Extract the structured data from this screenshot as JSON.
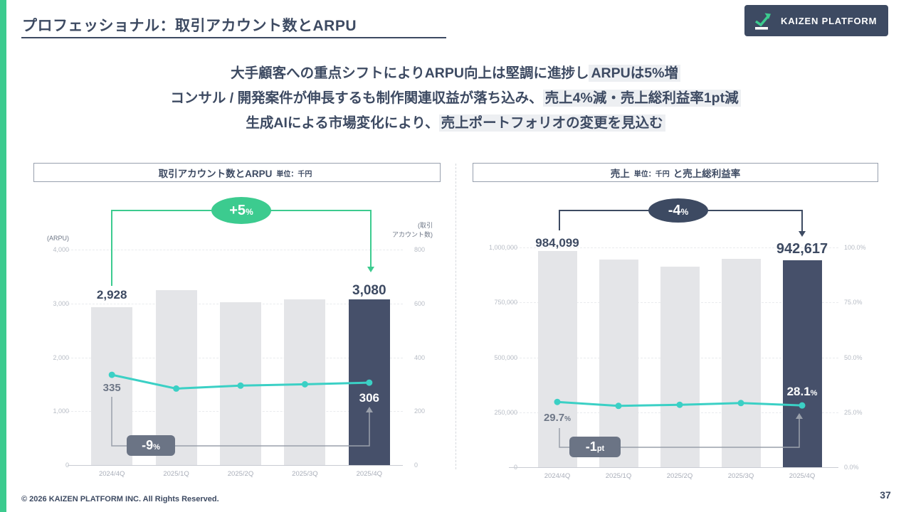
{
  "page": {
    "title": "プロフェッショナル：取引アカウント数とARPU",
    "logo_text": "KAIZEN PLATFORM",
    "footer": "© 2026 KAIZEN PLATFORM INC. All Rights Reserved.",
    "page_number": "37"
  },
  "summary": {
    "lines": [
      {
        "pre": "大手顧客への重点シフトによりARPU向上は堅調に進捗し",
        "highlight": "ARPUは5%増"
      },
      {
        "pre": "コンサル / 開発案件が伸長するも制作関連収益が落ち込み、",
        "highlight": "売上4%減・売上総利益率1pt減"
      },
      {
        "pre": "生成AIによる市場変化により、",
        "highlight": "売上ポートフォリオの変更を見込む"
      }
    ]
  },
  "colors": {
    "navy": "#3d4a62",
    "navy_bar": "#46506a",
    "green": "#3ccb8f",
    "teal": "#3bd0c5",
    "gray_bar": "#e4e5e8",
    "badge_gray": "#6b7485",
    "axis_text": "#b7bcc5",
    "x_label": "#a9aeb9",
    "gray_label": "#6e7787",
    "gridline": "#e9ebee",
    "baseline": "#c9ccd3",
    "highlight": "#edeff2",
    "box_border": "#98a0ae",
    "gray_line": "#9aa0ab",
    "white": "#ffffff"
  },
  "chart_data": [
    {
      "type": "bar+line",
      "title_main": "取引アカウント数とARPU",
      "unit": "単位：千円",
      "title_suffix": "",
      "categories": [
        "2024/4Q",
        "2025/1Q",
        "2025/2Q",
        "2025/3Q",
        "2025/4Q"
      ],
      "bar_series": {
        "name": "ARPU（千円）",
        "axis": "left",
        "values": [
          2928,
          3250,
          3020,
          3070,
          3080
        ]
      },
      "line_series": {
        "name": "取引アカウント数",
        "axis": "right",
        "values": [
          335,
          284,
          295,
          300,
          306
        ]
      },
      "left_axis": {
        "title": "(ARPU)",
        "max": 4000,
        "ticks": [
          "4,000",
          "3,000",
          "2,000",
          "1,000",
          "0"
        ]
      },
      "right_axis": {
        "title_line1": "(取引",
        "title_line2": "アカウント数)",
        "max": 800,
        "ticks": [
          "800",
          "600",
          "400",
          "200",
          "0"
        ]
      },
      "labels": {
        "bar_first": {
          "text": "2,928",
          "suffix": ""
        },
        "bar_last": {
          "text": "3,080",
          "suffix": ""
        },
        "line_first": {
          "text": "335",
          "suffix": ""
        },
        "line_last": {
          "text": "306",
          "suffix": ""
        }
      },
      "badges": {
        "top": {
          "text": "+5",
          "suffix": "%"
        },
        "bottom": {
          "text": "-9",
          "suffix": "%"
        }
      }
    },
    {
      "type": "bar+line",
      "title_main": "売上",
      "unit": "単位：千円",
      "title_suffix": "と売上総利益率",
      "categories": [
        "2024/4Q",
        "2025/1Q",
        "2025/2Q",
        "2025/3Q",
        "2025/4Q"
      ],
      "bar_series": {
        "name": "売上（千円）",
        "axis": "left",
        "values": [
          984099,
          945000,
          912000,
          948000,
          942617
        ]
      },
      "line_series": {
        "name": "売上総利益率",
        "axis": "right",
        "values": [
          29.7,
          27.9,
          28.4,
          29.2,
          28.1
        ]
      },
      "left_axis": {
        "max": 1000000,
        "ticks": [
          "1,000,000",
          "750,000",
          "500,000",
          "250,000",
          "0"
        ]
      },
      "right_axis": {
        "max": 100,
        "ticks": [
          "100.0%",
          "75.0%",
          "50.0%",
          "25.0%",
          "0.0%"
        ]
      },
      "labels": {
        "bar_first": {
          "text": "984,099",
          "suffix": ""
        },
        "bar_last": {
          "text": "942,617",
          "suffix": ""
        },
        "line_first": {
          "text": "29.7",
          "suffix": "%"
        },
        "line_last": {
          "text": "28.1",
          "suffix": "%"
        }
      },
      "badges": {
        "top": {
          "text": "-4",
          "suffix": "%"
        },
        "bottom": {
          "text": "-1",
          "suffix": "pt"
        }
      }
    }
  ]
}
